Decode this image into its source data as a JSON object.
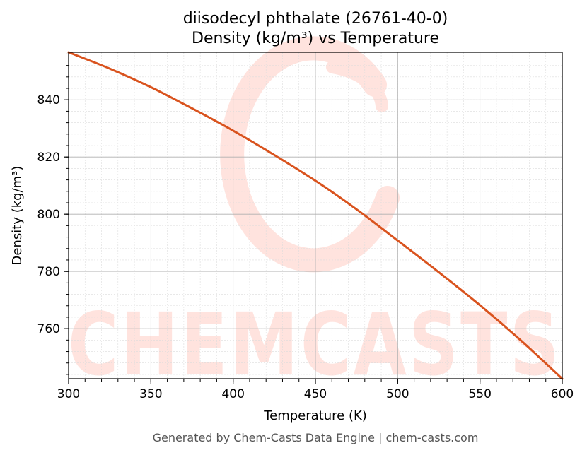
{
  "chart_data": {
    "type": "line",
    "title": "diisodecyl phthalate (26761-40-0)",
    "subtitle": "Density (kg/m³) vs Temperature",
    "xlabel": "Temperature (K)",
    "ylabel": "Density (kg/m³)",
    "xlim": [
      300,
      600
    ],
    "ylim": [
      742.5,
      856.6
    ],
    "x_ticks": [
      "300",
      "350",
      "400",
      "450",
      "500",
      "550",
      "600"
    ],
    "y_ticks": [
      "760",
      "780",
      "800",
      "820",
      "840"
    ],
    "grid": true,
    "series": [
      {
        "color": "#d9531e",
        "x": [
          300,
          325,
          350,
          375,
          400,
          425,
          450,
          475,
          500,
          525,
          550,
          575,
          600
        ],
        "y": [
          856.6,
          850.9,
          844.4,
          837.0,
          829.2,
          820.7,
          811.7,
          801.7,
          790.8,
          779.7,
          768.2,
          755.8,
          742.5
        ]
      }
    ]
  },
  "watermark": {
    "text": "CHEMCASTS",
    "color": "#ffe3de"
  },
  "footer": "Generated by Chem-Casts Data Engine | chem-casts.com"
}
